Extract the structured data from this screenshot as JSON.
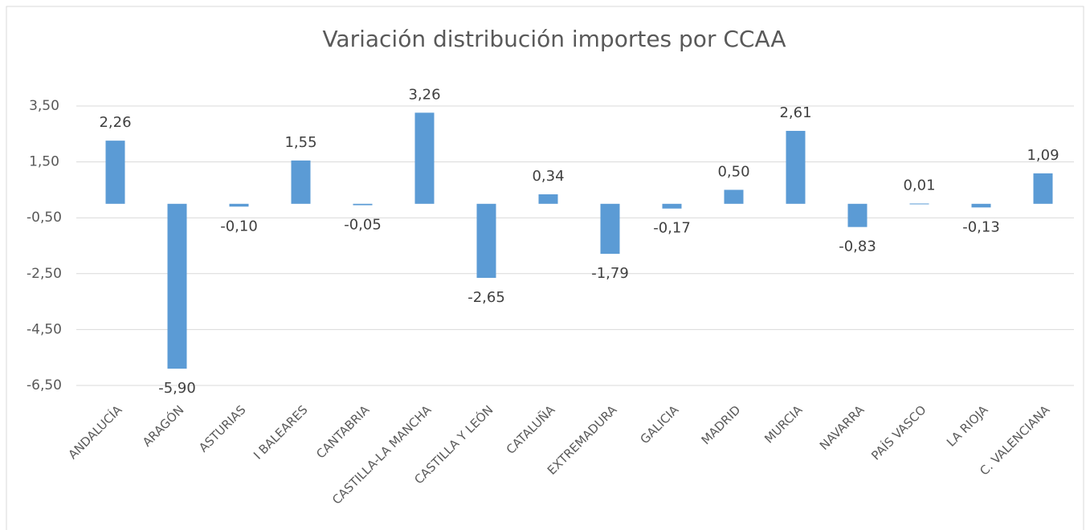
{
  "chart_data": {
    "type": "bar",
    "title": "Variación distribución importes por CCAA",
    "categories": [
      "ANDALUCÍA",
      "ARAGÓN",
      "ASTURIAS",
      "I BALEARES",
      "CANTABRIA",
      "CASTILLA-LA MANCHA",
      "CASTILLA Y LEÓN",
      "CATALUÑA",
      "EXTREMADURA",
      "GALICIA",
      "MADRID",
      "MURCIA",
      "NAVARRA",
      "PAÍS VASCO",
      "LA RIOJA",
      "C. VALENCIANA"
    ],
    "values": [
      2.26,
      -5.9,
      -0.1,
      1.55,
      -0.05,
      3.26,
      -2.65,
      0.34,
      -1.79,
      -0.17,
      0.5,
      2.61,
      -0.83,
      0.01,
      -0.13,
      1.09
    ],
    "value_labels": [
      "2,26",
      "-5,90",
      "-0,10",
      "1,55",
      "-0,05",
      "3,26",
      "-2,65",
      "0,34",
      "-1,79",
      "-0,17",
      "0,50",
      "2,61",
      "-0,83",
      "0,01",
      "-0,13",
      "1,09"
    ],
    "color": "#5b9bd5",
    "ylim": [
      -6.5,
      3.5
    ],
    "yticks": [
      {
        "value": 3.5,
        "label": "3,50"
      },
      {
        "value": 1.5,
        "label": "1,50"
      },
      {
        "value": -0.5,
        "label": "-0,50"
      },
      {
        "value": -2.5,
        "label": "-2,50"
      },
      {
        "value": -4.5,
        "label": "-4,50"
      },
      {
        "value": -6.5,
        "label": "-6,50"
      }
    ],
    "grid": true
  }
}
